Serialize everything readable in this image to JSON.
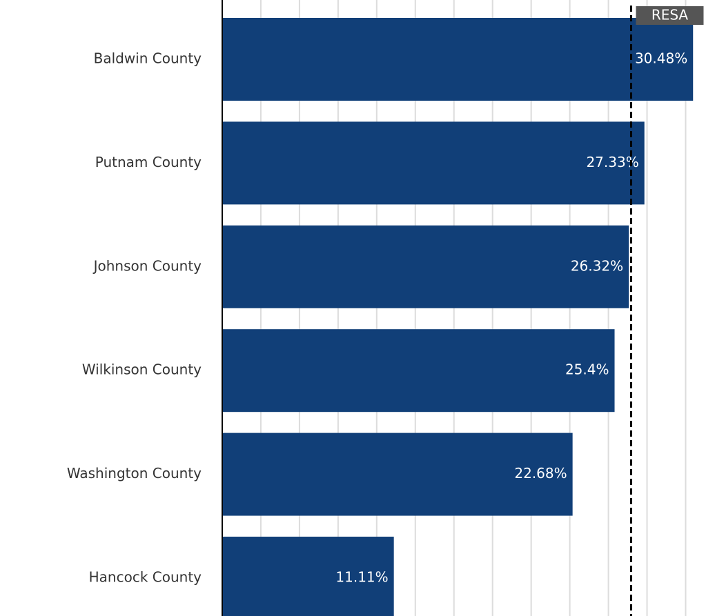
{
  "chart_data": {
    "type": "bar",
    "orientation": "horizontal",
    "categories": [
      "Baldwin County",
      "Putnam County",
      "Johnson County",
      "Wilkinson County",
      "Washington County",
      "Hancock County"
    ],
    "values": [
      30.48,
      27.33,
      26.32,
      25.4,
      22.68,
      11.11
    ],
    "value_labels": [
      "30.48%",
      "27.33%",
      "26.32%",
      "25.4%",
      "22.68%",
      "11.11%"
    ],
    "color": "#113f78",
    "xlim": [
      0,
      31.9
    ],
    "xticks": [
      0,
      2.5,
      5,
      7.5,
      10,
      12.5,
      15,
      17.5,
      20,
      22.5,
      25,
      27.5,
      30
    ],
    "grid": true,
    "reference_line": {
      "label": "RESA",
      "value": 26.47
    }
  }
}
